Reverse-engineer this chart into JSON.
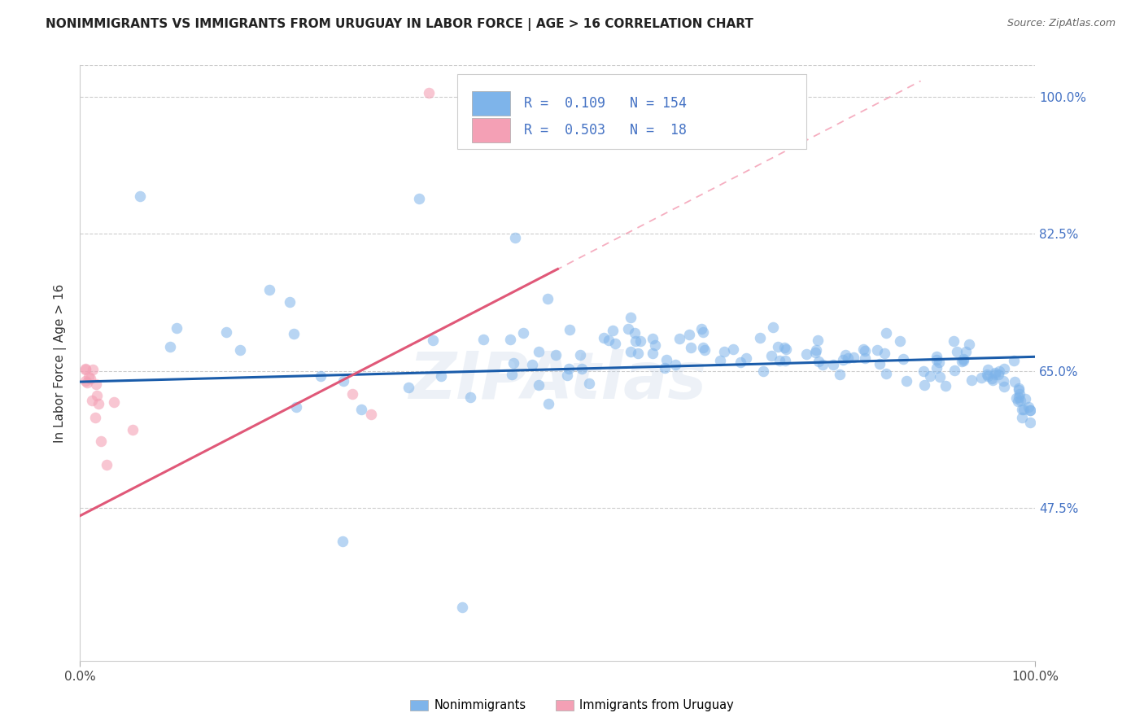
{
  "title": "NONIMMIGRANTS VS IMMIGRANTS FROM URUGUAY IN LABOR FORCE | AGE > 16 CORRELATION CHART",
  "source": "Source: ZipAtlas.com",
  "ylabel": "In Labor Force | Age > 16",
  "xlim": [
    0.0,
    1.0
  ],
  "ylim": [
    0.28,
    1.04
  ],
  "yticks": [
    0.475,
    0.65,
    0.825,
    1.0
  ],
  "ytick_labels": [
    "47.5%",
    "65.0%",
    "82.5%",
    "100.0%"
  ],
  "xtick_positions": [
    0.0,
    1.0
  ],
  "xtick_labels": [
    "0.0%",
    "100.0%"
  ],
  "blue_R": 0.109,
  "blue_N": 154,
  "pink_R": 0.503,
  "pink_N": 18,
  "blue_color": "#7EB4EA",
  "pink_color": "#F4A0B5",
  "trend_blue": "#1A5CAA",
  "trend_pink": "#E05878",
  "dashed_pink_color": "#F4A0B5",
  "right_label_color": "#4472C4",
  "legend_label_blue": "Nonimmigrants",
  "legend_label_pink": "Immigrants from Uruguay",
  "background_color": "#FFFFFF",
  "grid_color": "#CCCCCC",
  "watermark": "ZIPAtlas",
  "blue_trend": [
    0.0,
    0.636,
    1.0,
    0.668
  ],
  "pink_trend_solid": [
    0.0,
    0.465,
    0.5,
    0.78
  ],
  "pink_trend_dash": [
    0.35,
    0.685,
    0.88,
    1.02
  ]
}
